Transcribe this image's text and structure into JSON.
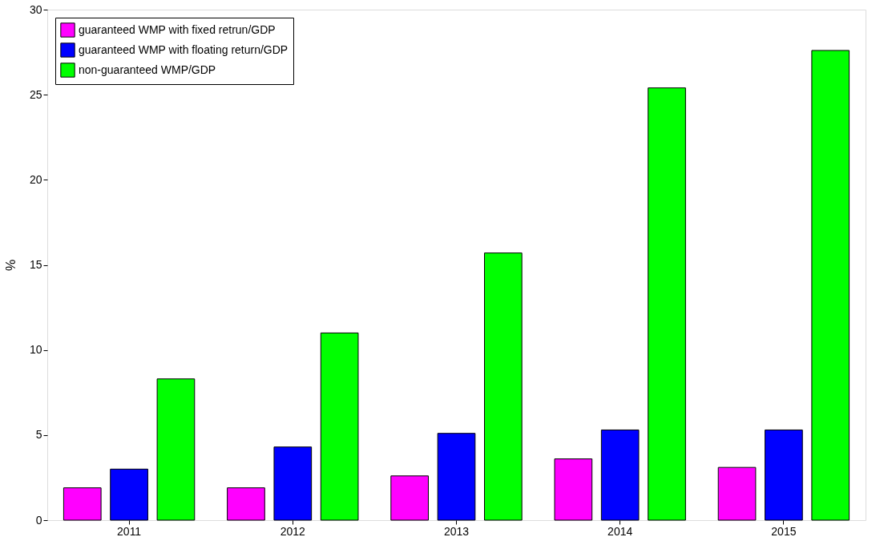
{
  "chart_data": {
    "type": "bar",
    "ylabel": "%",
    "categories": [
      "2011",
      "2012",
      "2013",
      "2014",
      "2015"
    ],
    "series": [
      {
        "name": "guaranteed WMP with fixed retrun/GDP",
        "color": "#ff00ff",
        "values": [
          1.9,
          1.9,
          2.6,
          3.6,
          3.1
        ]
      },
      {
        "name": "guaranteed WMP with floating return/GDP",
        "color": "#0000ff",
        "values": [
          3.0,
          4.3,
          5.1,
          5.3,
          5.3
        ]
      },
      {
        "name": "non-guaranteed WMP/GDP",
        "color": "#00ff00",
        "values": [
          8.3,
          11.0,
          15.7,
          25.4,
          27.6
        ]
      }
    ],
    "ylim": [
      0,
      30
    ],
    "yticks": [
      0,
      5,
      10,
      15,
      20,
      25,
      30
    ],
    "grid": false,
    "legend": "top left"
  }
}
